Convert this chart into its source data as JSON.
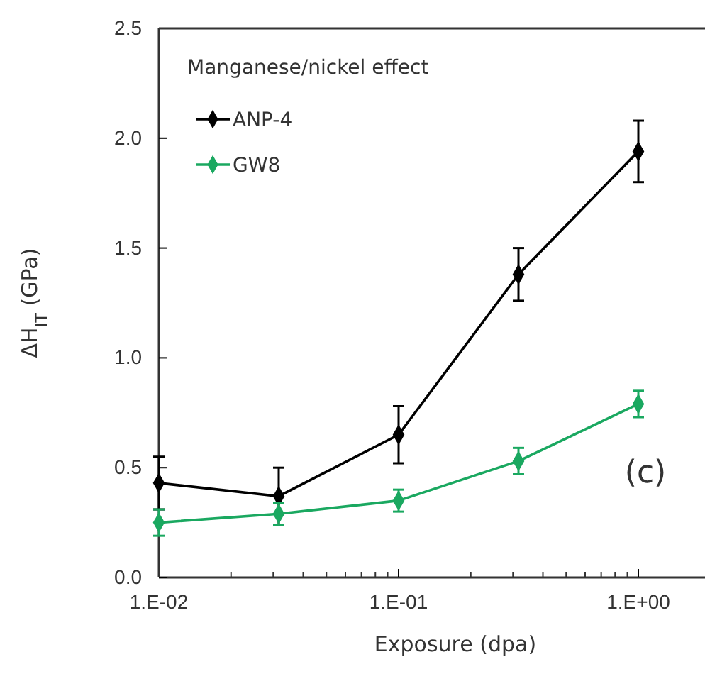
{
  "chart_data": {
    "type": "line",
    "xlabel": "Exposure (dpa)",
    "ylabel": "ΔH$_{IT}$ (GPa)",
    "legend_title": "Manganese/nickel effect",
    "annotations": [
      "(c)"
    ],
    "categories": [
      "1.E-02",
      null,
      "1.E-01",
      null,
      "1.E+00"
    ],
    "series": [
      {
        "name": "ANP-4",
        "color": "#000000",
        "values": [
          0.43,
          0.37,
          0.65,
          1.38,
          1.94
        ],
        "errors": [
          0.12,
          0.13,
          0.13,
          0.12,
          0.14
        ]
      },
      {
        "name": "GW8",
        "color": "#1aa860",
        "values": [
          0.25,
          0.29,
          0.35,
          0.53,
          0.79
        ],
        "errors": [
          0.06,
          0.05,
          0.05,
          0.06,
          0.06
        ]
      }
    ],
    "ylim": [
      0,
      2.5
    ],
    "yticks": [
      {
        "value": 0,
        "label": "0.0"
      },
      {
        "value": 0.5,
        "label": "0.5"
      },
      {
        "value": 1,
        "label": "1.0"
      },
      {
        "value": 1.5,
        "label": "1.5"
      },
      {
        "value": 2,
        "label": "2.0"
      },
      {
        "value": 2.5,
        "label": "2.5"
      }
    ],
    "grid": false,
    "legend": "top left",
    "marker": "diamond",
    "line_style": "solid"
  }
}
